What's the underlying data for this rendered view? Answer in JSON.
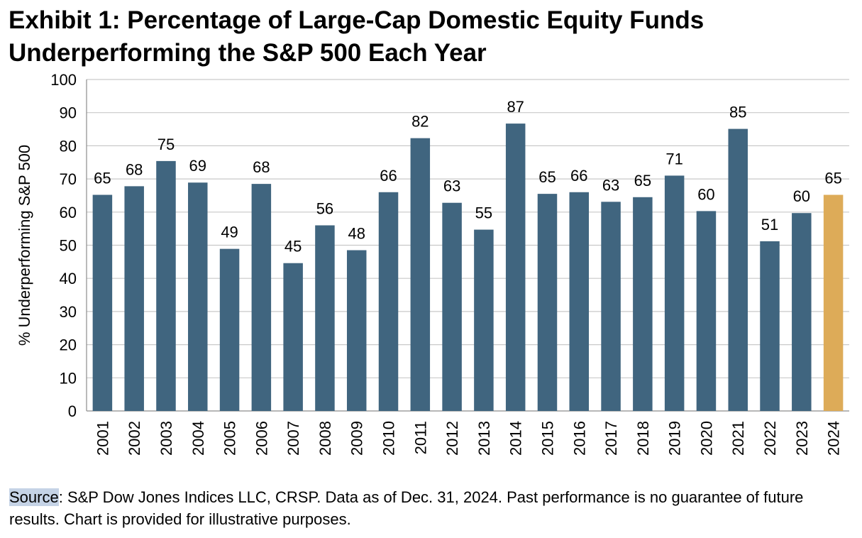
{
  "title_line1": "Exhibit 1: Percentage of Large-Cap Domestic Equity Funds",
  "title_line2": "Underperforming the S&P 500 Each Year",
  "source_label": "Source",
  "source_text": ": S&P Dow Jones Indices LLC, CRSP.  Data as of Dec. 31, 2024.  Past performance is no guarantee of future results.  Chart is provided for illustrative purposes.",
  "chart_data": {
    "type": "bar",
    "ylabel": "% Underperforming S&P 500",
    "xlabel": "",
    "ylim": [
      0,
      100
    ],
    "yticks": [
      0,
      10,
      20,
      30,
      40,
      50,
      60,
      70,
      80,
      90,
      100
    ],
    "grid": true,
    "categories": [
      "2001",
      "2002",
      "2003",
      "2004",
      "2005",
      "2006",
      "2007",
      "2008",
      "2009",
      "2010",
      "2011",
      "2012",
      "2013",
      "2014",
      "2015",
      "2016",
      "2017",
      "2018",
      "2019",
      "2020",
      "2021",
      "2022",
      "2023",
      "2024"
    ],
    "values": [
      65.2,
      67.8,
      75.4,
      68.9,
      48.9,
      68.5,
      44.6,
      56.0,
      48.5,
      66.0,
      82.3,
      62.8,
      54.7,
      86.7,
      65.5,
      66.0,
      63.1,
      64.5,
      71.0,
      60.3,
      85.1,
      51.2,
      59.7,
      65.2
    ],
    "data_labels": [
      "65",
      "68",
      "75",
      "69",
      "49",
      "68",
      "45",
      "56",
      "48",
      "66",
      "82",
      "63",
      "55",
      "87",
      "65",
      "66",
      "63",
      "65",
      "71",
      "60",
      "85",
      "51",
      "60",
      "65"
    ],
    "bar_color": "#40657f",
    "highlight_color": "#ddab58",
    "highlight_index": 23
  }
}
